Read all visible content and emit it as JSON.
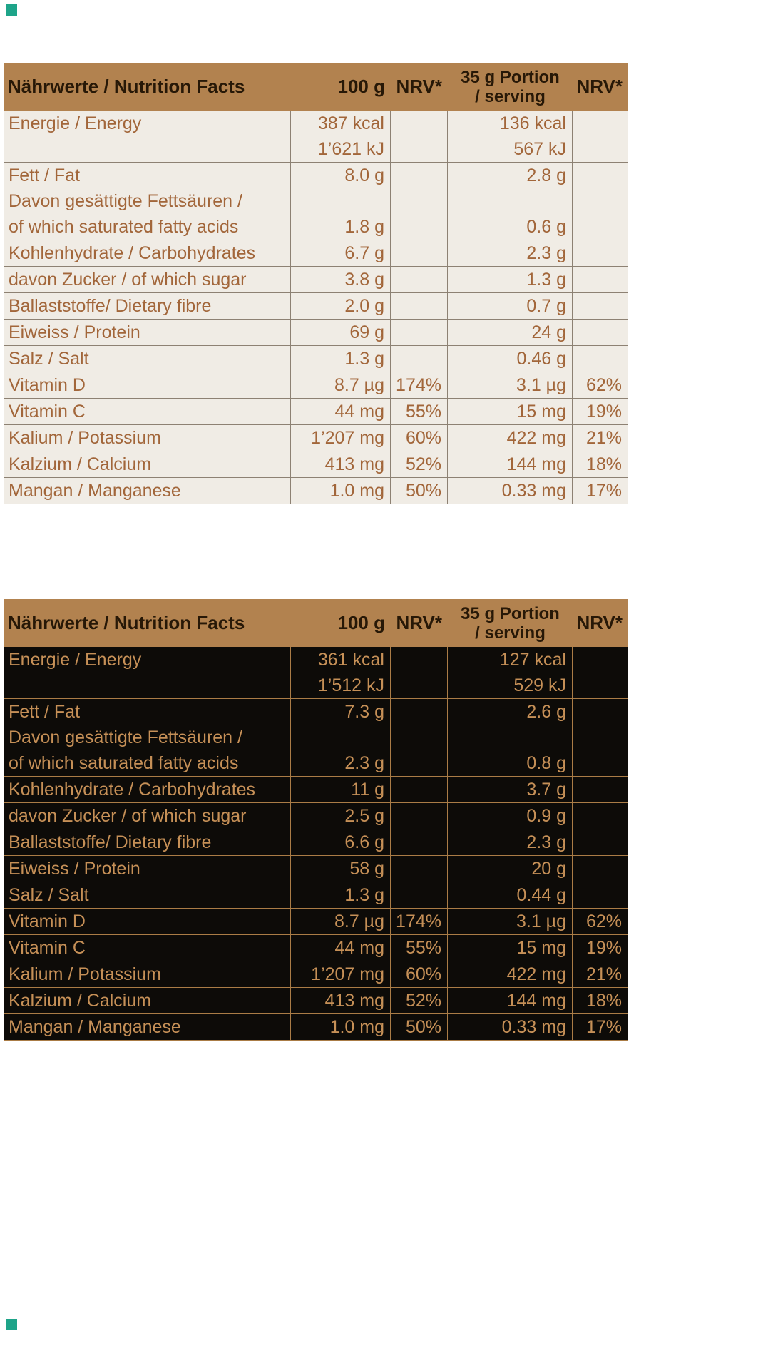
{
  "markers": {
    "color": "#1ea489"
  },
  "tables": [
    {
      "name": "nutrition-table-light",
      "theme": {
        "header_bg": "#b2824f",
        "header_fg": "#271807",
        "body_bg": "#f0ece5",
        "body_fg": "#a2663a",
        "line": "#8d8173"
      },
      "header": {
        "title": "Nährwerte / Nutrition Facts",
        "col_100g": "100 g",
        "col_nrv_1": "NRV*",
        "col_portion_line1": "35 g Portion",
        "col_portion_line2": "/ serving",
        "col_nrv_2": "NRV*"
      },
      "lines": [
        {
          "label": "Energie / Energy",
          "v100": "387 kcal",
          "nrv1": "",
          "portion": "136 kcal",
          "nrv2": "",
          "sep": false
        },
        {
          "label": "",
          "v100": "1’621 kJ",
          "nrv1": "",
          "portion": "567 kJ",
          "nrv2": "",
          "sep": true
        },
        {
          "label": "Fett / Fat",
          "v100": "8.0 g",
          "nrv1": "",
          "portion": "2.8 g",
          "nrv2": "",
          "sep": false
        },
        {
          "label": "Davon gesättigte Fettsäuren /",
          "v100": "",
          "nrv1": "",
          "portion": "",
          "nrv2": "",
          "sep": false
        },
        {
          "label": "of which saturated fatty acids",
          "v100": "1.8 g",
          "nrv1": "",
          "portion": "0.6 g",
          "nrv2": "",
          "sep": true
        },
        {
          "label": "Kohlenhydrate / Carbohydrates",
          "v100": "6.7 g",
          "nrv1": "",
          "portion": "2.3 g",
          "nrv2": "",
          "sep": true
        },
        {
          "label": "davon Zucker / of which sugar",
          "v100": "3.8 g",
          "nrv1": "",
          "portion": "1.3 g",
          "nrv2": "",
          "sep": true
        },
        {
          "label": "Ballaststoffe/ Dietary fibre",
          "v100": "2.0 g",
          "nrv1": "",
          "portion": "0.7 g",
          "nrv2": "",
          "sep": true
        },
        {
          "label": "Eiweiss / Protein",
          "v100": "69 g",
          "nrv1": "",
          "portion": "24 g",
          "nrv2": "",
          "sep": true
        },
        {
          "label": "Salz / Salt",
          "v100": "1.3 g",
          "nrv1": "",
          "portion": "0.46 g",
          "nrv2": "",
          "sep": true
        },
        {
          "label": "Vitamin D",
          "v100": "8.7 µg",
          "nrv1": "174%",
          "portion": "3.1 µg",
          "nrv2": "62%",
          "sep": true
        },
        {
          "label": "Vitamin C",
          "v100": "44 mg",
          "nrv1": "55%",
          "portion": "15 mg",
          "nrv2": "19%",
          "sep": true
        },
        {
          "label": "Kalium / Potassium",
          "v100": "1’207 mg",
          "nrv1": "60%",
          "portion": "422 mg",
          "nrv2": "21%",
          "sep": true
        },
        {
          "label": "Kalzium / Calcium",
          "v100": "413 mg",
          "nrv1": "52%",
          "portion": "144 mg",
          "nrv2": "18%",
          "sep": true
        },
        {
          "label": "Mangan / Manganese",
          "v100": "1.0 mg",
          "nrv1": "50%",
          "portion": "0.33 mg",
          "nrv2": "17%",
          "sep": true
        }
      ]
    },
    {
      "name": "nutrition-table-dark",
      "theme": {
        "header_bg": "#b2824f",
        "header_fg": "#271807",
        "body_bg": "#0d0b08",
        "body_fg": "#c69057",
        "line": "#aa7c46"
      },
      "header": {
        "title": "Nährwerte / Nutrition Facts",
        "col_100g": "100 g",
        "col_nrv_1": "NRV*",
        "col_portion_line1": "35 g Portion",
        "col_portion_line2": "/ serving",
        "col_nrv_2": "NRV*"
      },
      "lines": [
        {
          "label": "Energie / Energy",
          "v100": "361 kcal",
          "nrv1": "",
          "portion": "127 kcal",
          "nrv2": "",
          "sep": false
        },
        {
          "label": "",
          "v100": "1’512 kJ",
          "nrv1": "",
          "portion": "529 kJ",
          "nrv2": "",
          "sep": true
        },
        {
          "label": "Fett / Fat",
          "v100": "7.3 g",
          "nrv1": "",
          "portion": "2.6 g",
          "nrv2": "",
          "sep": false
        },
        {
          "label": "Davon gesättigte Fettsäuren /",
          "v100": "",
          "nrv1": "",
          "portion": "",
          "nrv2": "",
          "sep": false
        },
        {
          "label": "of which saturated fatty acids",
          "v100": "2.3 g",
          "nrv1": "",
          "portion": "0.8 g",
          "nrv2": "",
          "sep": true
        },
        {
          "label": "Kohlenhydrate / Carbohydrates",
          "v100": "11 g",
          "nrv1": "",
          "portion": "3.7 g",
          "nrv2": "",
          "sep": true
        },
        {
          "label": "davon Zucker / of which sugar",
          "v100": "2.5 g",
          "nrv1": "",
          "portion": "0.9 g",
          "nrv2": "",
          "sep": true
        },
        {
          "label": "Ballaststoffe/ Dietary fibre",
          "v100": "6.6 g",
          "nrv1": "",
          "portion": "2.3 g",
          "nrv2": "",
          "sep": true
        },
        {
          "label": "Eiweiss / Protein",
          "v100": "58 g",
          "nrv1": "",
          "portion": "20 g",
          "nrv2": "",
          "sep": true
        },
        {
          "label": "Salz / Salt",
          "v100": "1.3 g",
          "nrv1": "",
          "portion": "0.44 g",
          "nrv2": "",
          "sep": true
        },
        {
          "label": "Vitamin D",
          "v100": "8.7 µg",
          "nrv1": "174%",
          "portion": "3.1 µg",
          "nrv2": "62%",
          "sep": true
        },
        {
          "label": "Vitamin C",
          "v100": "44 mg",
          "nrv1": "55%",
          "portion": "15 mg",
          "nrv2": "19%",
          "sep": true
        },
        {
          "label": "Kalium / Potassium",
          "v100": "1’207 mg",
          "nrv1": "60%",
          "portion": "422 mg",
          "nrv2": "21%",
          "sep": true
        },
        {
          "label": "Kalzium / Calcium",
          "v100": "413 mg",
          "nrv1": "52%",
          "portion": "144 mg",
          "nrv2": "18%",
          "sep": true
        },
        {
          "label": "Mangan / Manganese",
          "v100": "1.0 mg",
          "nrv1": "50%",
          "portion": "0.33 mg",
          "nrv2": "17%",
          "sep": true
        }
      ]
    }
  ]
}
